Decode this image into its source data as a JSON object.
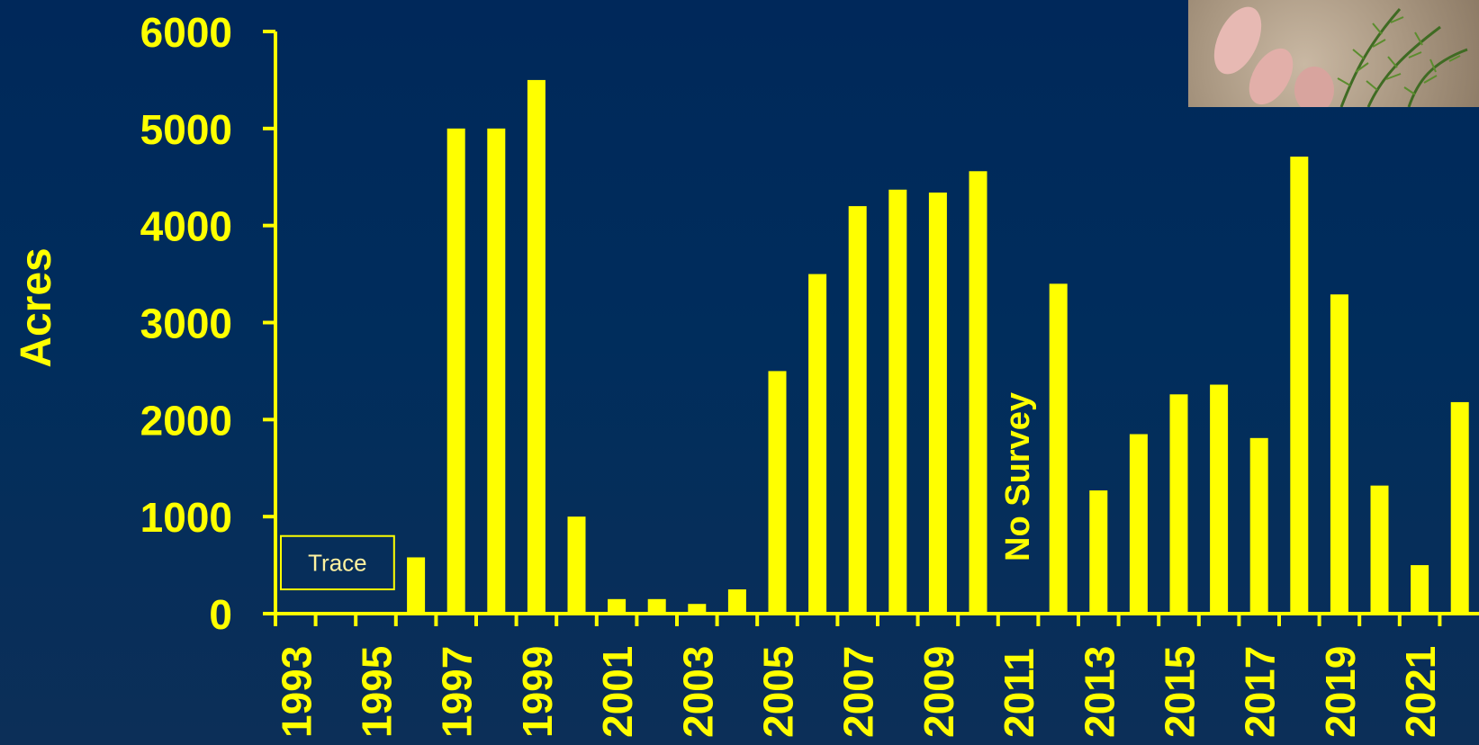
{
  "chart_data": {
    "type": "bar",
    "ylabel": "Acres",
    "ylim": [
      0,
      6000
    ],
    "yticks": [
      0,
      1000,
      2000,
      3000,
      4000,
      5000,
      6000
    ],
    "categories": [
      "1993",
      "1994",
      "1995",
      "1996",
      "1997",
      "1998",
      "1999",
      "2000",
      "2001",
      "2002",
      "2003",
      "2004",
      "2005",
      "2006",
      "2007",
      "2008",
      "2009",
      "2010",
      "2011",
      "2012",
      "2013",
      "2014",
      "2015",
      "2016",
      "2017",
      "2018",
      "2019",
      "2020",
      "2021",
      "2022",
      "2023"
    ],
    "xtick_labels": [
      "1993",
      "1995",
      "1997",
      "1999",
      "2001",
      "2003",
      "2005",
      "2007",
      "2009",
      "2011",
      "2013",
      "2015",
      "2017",
      "2019",
      "2021"
    ],
    "values": [
      0,
      0,
      0,
      580,
      5000,
      5000,
      5500,
      1000,
      150,
      150,
      100,
      250,
      2500,
      3500,
      4200,
      4370,
      4340,
      4560,
      null,
      3400,
      1270,
      1850,
      2260,
      2360,
      1810,
      4710,
      3290,
      1320,
      500,
      2180,
      null
    ],
    "annotations": [
      {
        "text": "Trace",
        "years": [
          "1993",
          "1995"
        ]
      },
      {
        "text": "No Survey",
        "year": "2011"
      }
    ],
    "bar_color": "#ffff00",
    "label_color": "#ffff00",
    "background_color": "#002b5c",
    "grid": false,
    "legend": "none"
  },
  "photo": {
    "description_icon": "aquatic-plant-in-hand-photo"
  }
}
